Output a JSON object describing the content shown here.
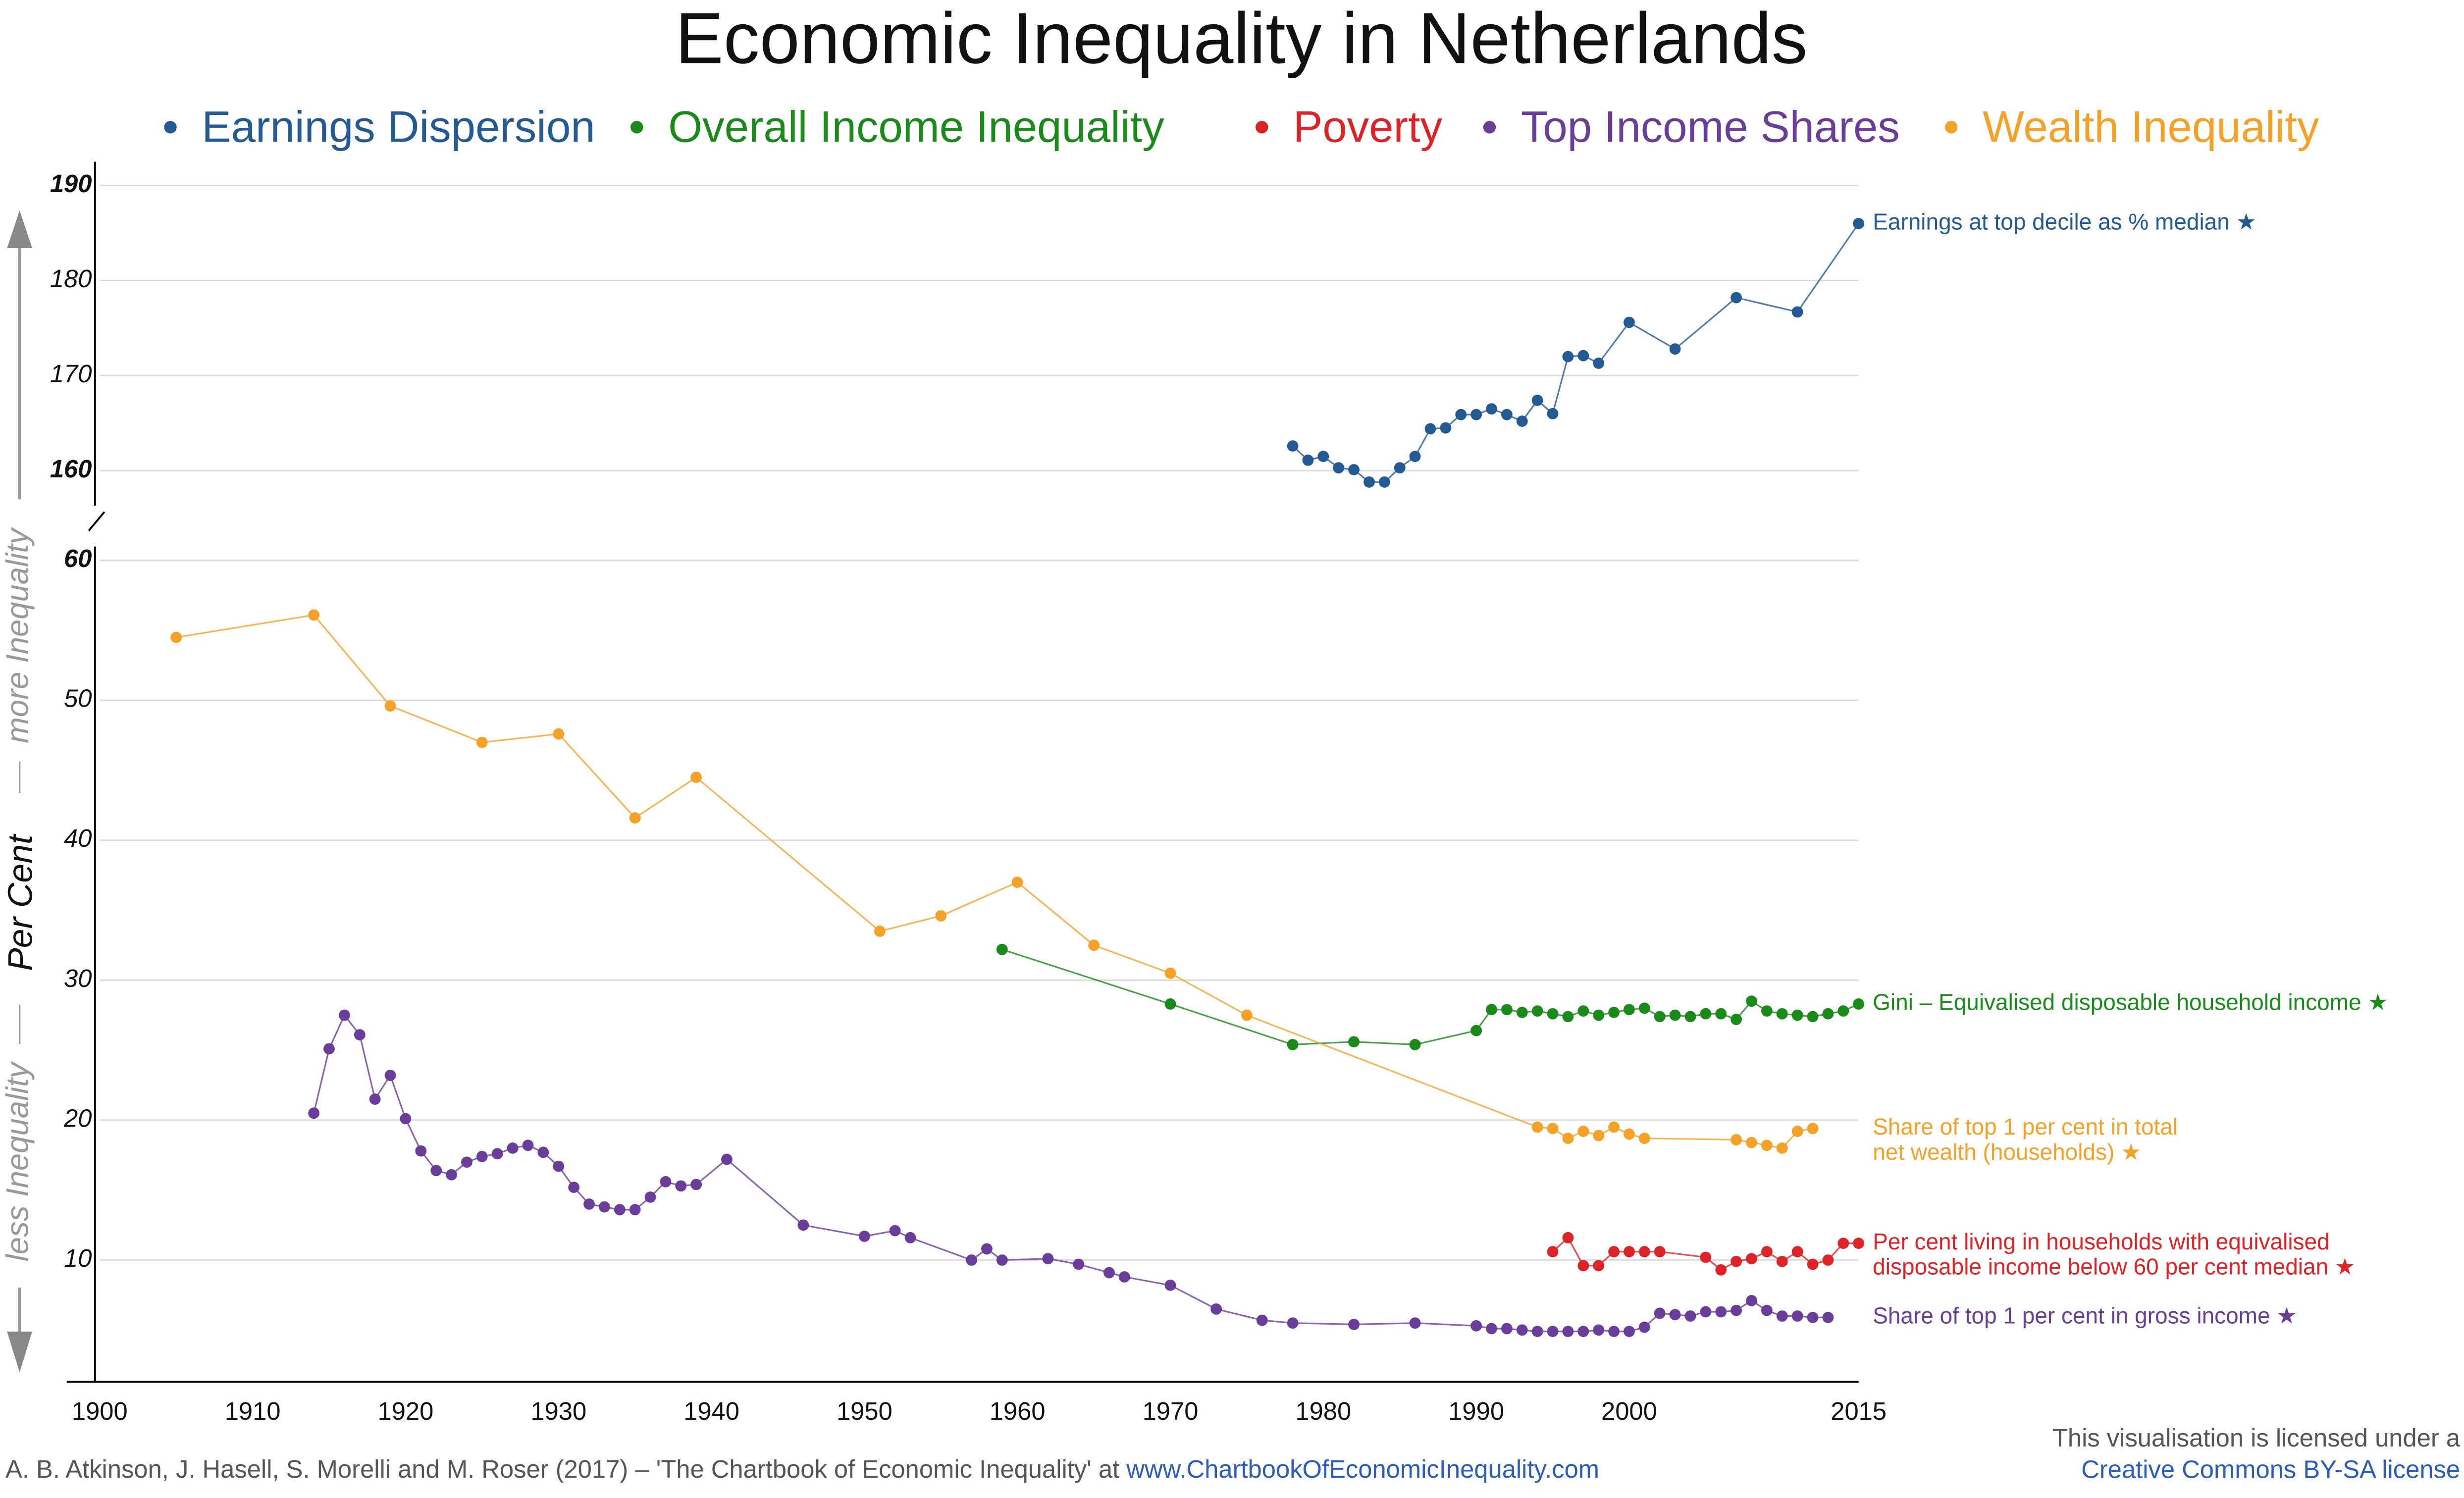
{
  "title": "Economic Inequality in Netherlands",
  "ylabel": "Per Cent",
  "more_note": "more Inequality",
  "less_note": "less Inequality",
  "source": "A. B. Atkinson, J. Hasell, S. Morelli and M. Roser (2017) – 'The Chartbook of Economic Inequality' at ",
  "source_link": "www.ChartbookOfEconomicInequality.com",
  "license": "This visualisation is licensed under a",
  "license_link": "Creative Commons BY-SA license",
  "chart_data": [
    {
      "type": "line",
      "xlim": [
        1900,
        2015
      ],
      "ylim": [
        155,
        192.5
      ],
      "yticks": [
        160,
        170,
        180,
        190
      ],
      "grid": true,
      "series": [
        {
          "name": "Earnings Dispersion",
          "color": "#245a93",
          "label": [
            "Earnings at top decile as % median ★"
          ],
          "x": [
            1978,
            1979,
            1980,
            1981,
            1982,
            1983,
            1984,
            1985,
            1986,
            1987,
            1988,
            1989,
            1990,
            1991,
            1992,
            1993,
            1994,
            1995,
            1996,
            1997,
            1998,
            2000,
            2003,
            2007,
            2011,
            2015
          ],
          "values": [
            162.6,
            161.1,
            161.5,
            160.3,
            160.1,
            158.8,
            158.8,
            160.3,
            161.5,
            164.4,
            164.5,
            165.9,
            165.9,
            166.5,
            165.9,
            165.2,
            167.4,
            166.0,
            172.0,
            172.1,
            171.3,
            175.6,
            172.8,
            178.2,
            176.7,
            186.0
          ]
        }
      ]
    },
    {
      "type": "line",
      "xlim": [
        1900,
        2015
      ],
      "ylim": [
        1.3,
        61
      ],
      "yticks": [
        10,
        20,
        30,
        40,
        50,
        60
      ],
      "grid": true,
      "xticks": [
        1900,
        1910,
        1920,
        1930,
        1940,
        1950,
        1960,
        1970,
        1980,
        1990,
        2000,
        2015
      ],
      "series": [
        {
          "name": "Overall Income Inequality",
          "color": "#1a8a1a",
          "label": [
            "Gini – Equivalised disposable household income ★"
          ],
          "x": [
            1959,
            1970,
            1978,
            1982,
            1986,
            1990,
            1991,
            1992,
            1993,
            1994,
            1995,
            1996,
            1997,
            1998,
            1999,
            2000,
            2001,
            2002,
            2003,
            2004,
            2005,
            2006,
            2007,
            2008,
            2009,
            2010,
            2011,
            2012,
            2013,
            2014,
            2015
          ],
          "values": [
            32.2,
            28.3,
            25.4,
            25.6,
            25.4,
            26.4,
            27.9,
            27.9,
            27.7,
            27.8,
            27.6,
            27.4,
            27.8,
            27.5,
            27.7,
            27.9,
            28.0,
            27.4,
            27.5,
            27.4,
            27.6,
            27.6,
            27.2,
            28.5,
            27.8,
            27.6,
            27.5,
            27.4,
            27.6,
            27.8,
            28.3
          ]
        },
        {
          "name": "Poverty",
          "color": "#dd2228",
          "label": [
            "Per cent living in households with equivalised",
            "disposable income below 60 per cent median ★"
          ],
          "x": [
            1995,
            1996,
            1997,
            1998,
            1999,
            2000,
            2001,
            2002,
            2005,
            2006,
            2007,
            2008,
            2009,
            2010,
            2011,
            2012,
            2013,
            2014,
            2015
          ],
          "values": [
            10.6,
            11.6,
            9.6,
            9.6,
            10.6,
            10.6,
            10.6,
            10.6,
            10.2,
            9.3,
            9.9,
            10.1,
            10.6,
            9.9,
            10.6,
            9.7,
            10.0,
            11.2,
            11.2
          ]
        },
        {
          "name": "Top Income Shares",
          "color": "#6a3d9a",
          "label": [
            "Share of top 1 per cent in gross income ★"
          ],
          "x": [
            1914,
            1915,
            1916,
            1917,
            1918,
            1919,
            1920,
            1921,
            1922,
            1923,
            1924,
            1925,
            1926,
            1927,
            1928,
            1929,
            1930,
            1931,
            1932,
            1933,
            1934,
            1935,
            1936,
            1937,
            1938,
            1939,
            1941,
            1946,
            1950,
            1952,
            1953,
            1957,
            1958,
            1959,
            1962,
            1964,
            1966,
            1967,
            1970,
            1973,
            1976,
            1978,
            1982,
            1986,
            1990,
            1991,
            1992,
            1993,
            1994,
            1995,
            1996,
            1997,
            1998,
            1999,
            2000,
            2001,
            2002,
            2003,
            2004,
            2005,
            2006,
            2007,
            2008,
            2009,
            2010,
            2011,
            2012,
            2013
          ],
          "values": [
            20.5,
            25.1,
            27.5,
            26.1,
            21.5,
            23.2,
            20.1,
            17.8,
            16.4,
            16.1,
            17.0,
            17.4,
            17.6,
            18.0,
            18.2,
            17.7,
            16.7,
            15.2,
            14.0,
            13.8,
            13.6,
            13.6,
            14.5,
            15.6,
            15.3,
            15.4,
            17.2,
            12.5,
            11.7,
            12.1,
            11.6,
            10.0,
            10.8,
            10.0,
            10.1,
            9.7,
            9.1,
            8.8,
            8.2,
            6.5,
            5.7,
            5.5,
            5.4,
            5.5,
            5.3,
            5.1,
            5.1,
            5.0,
            4.9,
            4.9,
            4.9,
            4.9,
            5.0,
            4.9,
            4.9,
            5.2,
            6.2,
            6.1,
            6.0,
            6.3,
            6.3,
            6.4,
            7.1,
            6.4,
            6.0,
            6.0,
            5.9,
            5.9
          ]
        },
        {
          "name": "Wealth Inequality",
          "color": "#f5a128",
          "label": [
            "Share of top 1 per cent in total",
            "net wealth (households) ★"
          ],
          "x": [
            1905,
            1914,
            1919,
            1925,
            1930,
            1935,
            1939,
            1951,
            1955,
            1960,
            1965,
            1970,
            1975,
            1994,
            1995,
            1996,
            1997,
            1998,
            1999,
            2000,
            2001,
            2007,
            2008,
            2009,
            2010,
            2011,
            2012
          ],
          "values": [
            54.5,
            56.1,
            49.6,
            47.0,
            47.6,
            41.6,
            44.5,
            33.5,
            34.6,
            37.0,
            32.5,
            30.5,
            27.5,
            19.5,
            19.4,
            18.7,
            19.2,
            18.9,
            19.5,
            19.0,
            18.7,
            18.6,
            18.4,
            18.2,
            18.0,
            19.2,
            19.4
          ]
        }
      ]
    }
  ]
}
